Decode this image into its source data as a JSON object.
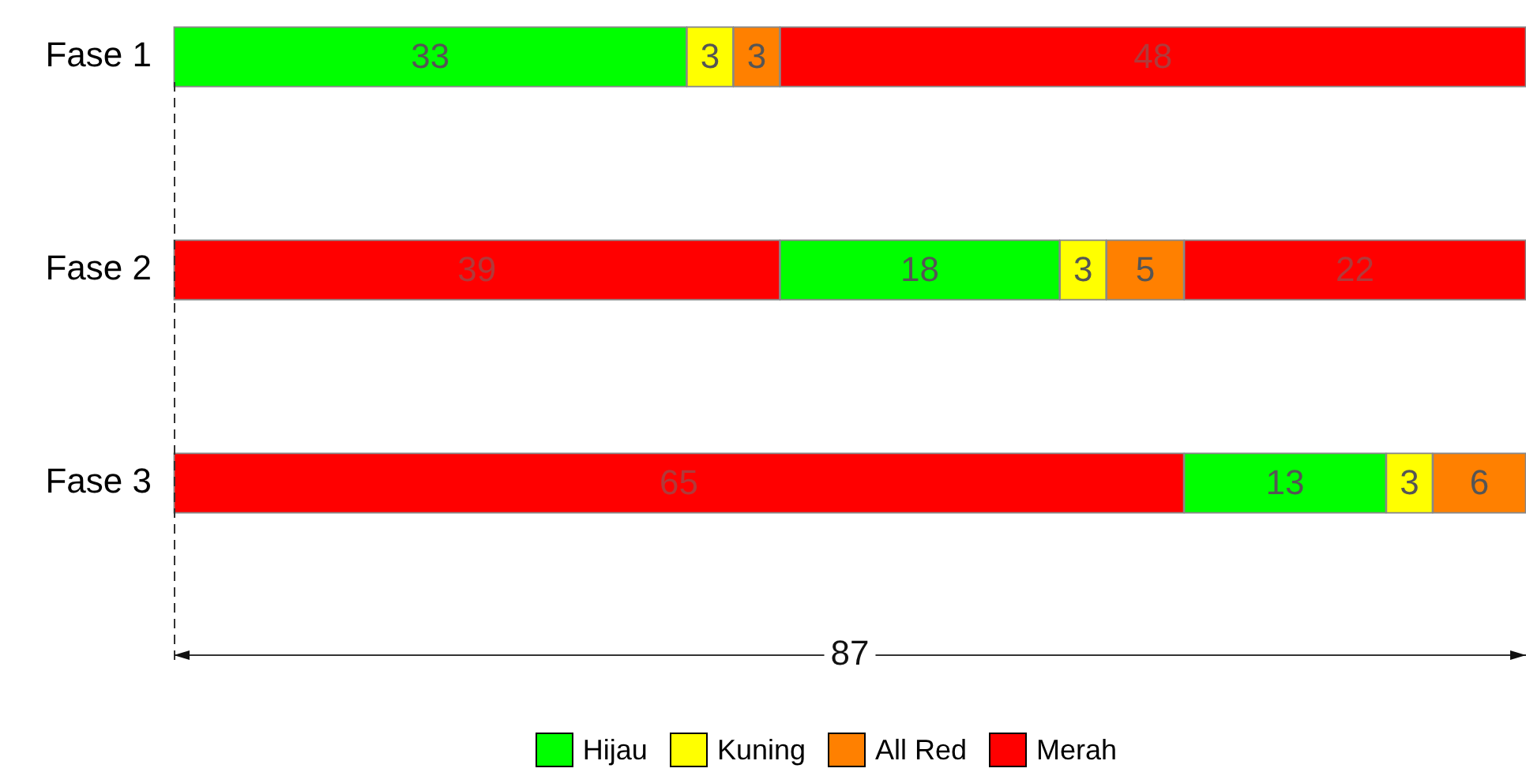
{
  "chart_data": {
    "type": "bar",
    "orientation": "horizontal",
    "stacked": true,
    "categories": [
      "Fase 1",
      "Fase 2",
      "Fase 3"
    ],
    "series": [
      {
        "color": "#ff0000",
        "values": [
          null,
          39,
          65
        ]
      },
      {
        "name": "Hijau",
        "color": "#00ff00",
        "values": [
          33,
          18,
          13
        ]
      },
      {
        "name": "Kuning",
        "color": "#ffff00",
        "values": [
          3,
          3,
          3
        ]
      },
      {
        "name": "All Red",
        "color": "#ff8000",
        "values": [
          3,
          5,
          6
        ]
      },
      {
        "name": "Merah",
        "color": "#ff0000",
        "values": [
          48,
          22,
          null
        ]
      }
    ],
    "tick_labels": "y",
    "data_labels": true,
    "legend": "bottom",
    "annotations": [
      "87"
    ]
  }
}
